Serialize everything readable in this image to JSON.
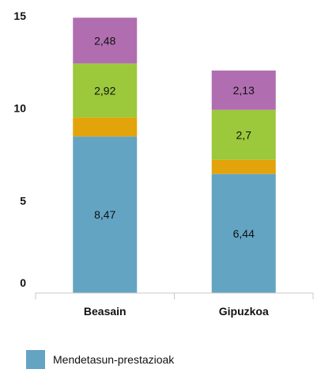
{
  "chart_data": {
    "type": "bar",
    "stacked": true,
    "categories": [
      "Beasain",
      "Gipuzkoa"
    ],
    "ylim": [
      0,
      15
    ],
    "yticks": [
      0,
      5,
      10,
      15
    ],
    "grid": false,
    "legend_position": "bottom-left",
    "series": [
      {
        "name": "Mendetasun-prestazioak",
        "color": "#63a4c3",
        "values": [
          8.47,
          6.44
        ],
        "labels": [
          "8,47",
          "6,44"
        ]
      },
      {
        "name": "",
        "color": "#e3a30a",
        "values": [
          1.03,
          0.77
        ],
        "labels": [
          "",
          ""
        ]
      },
      {
        "name": "",
        "color": "#9cc83c",
        "values": [
          2.92,
          2.7
        ],
        "labels": [
          "2,92",
          "2,7"
        ]
      },
      {
        "name": "",
        "color": "#b06eb0",
        "values": [
          2.48,
          2.13
        ],
        "labels": [
          "2,48",
          "2,13"
        ]
      }
    ],
    "legend": [
      {
        "label": "Mendetasun-prestazioak",
        "color": "#63a4c3"
      }
    ]
  }
}
